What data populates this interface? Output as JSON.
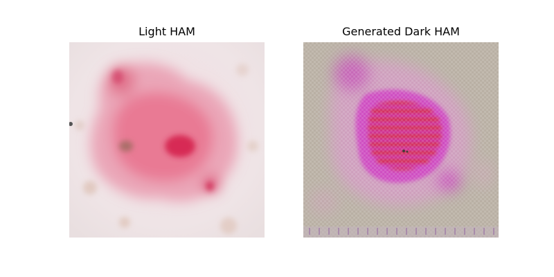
{
  "panels": {
    "left": {
      "title": "Light HAM"
    },
    "right": {
      "title": "Generated Dark HAM"
    }
  },
  "colors": {
    "left_skin": "#efe0e4",
    "left_lesion": "#e8607e",
    "left_lesion_core": "#d72b55",
    "right_background": "#b9b0a4",
    "right_magenta": "#cf4fc2",
    "right_red_band": "#d5312f"
  }
}
